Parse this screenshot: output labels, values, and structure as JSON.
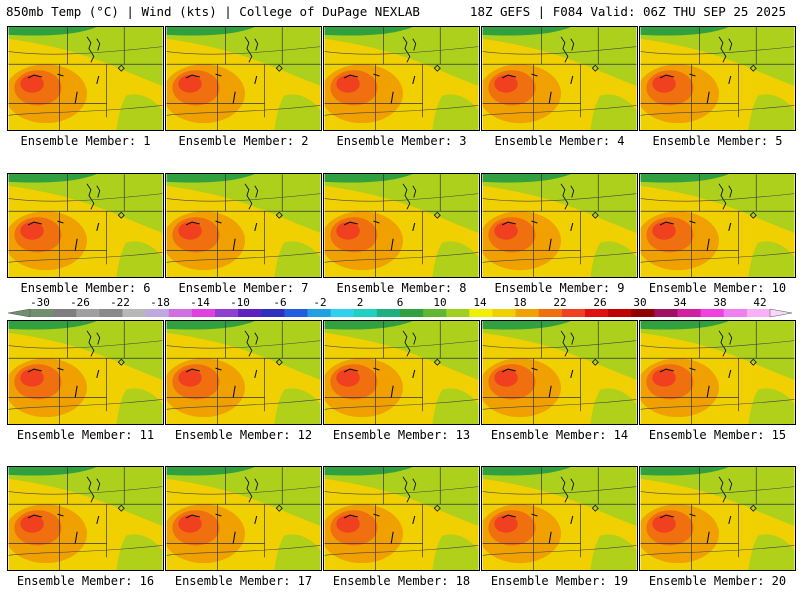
{
  "header": {
    "left": "850mb Temp (°C) | Wind (kts) | College of DuPage NEXLAB",
    "right": "18Z GEFS | F084 Valid: 06Z THU SEP 25 2025"
  },
  "members": [
    "Ensemble Member: 1",
    "Ensemble Member: 2",
    "Ensemble Member: 3",
    "Ensemble Member: 4",
    "Ensemble Member: 5",
    "Ensemble Member: 6",
    "Ensemble Member: 7",
    "Ensemble Member: 8",
    "Ensemble Member: 9",
    "Ensemble Member: 10",
    "Ensemble Member: 11",
    "Ensemble Member: 12",
    "Ensemble Member: 13",
    "Ensemble Member: 14",
    "Ensemble Member: 15",
    "Ensemble Member: 16",
    "Ensemble Member: 17",
    "Ensemble Member: 18",
    "Ensemble Member: 19",
    "Ensemble Member: 20"
  ],
  "colorbar": {
    "labels": [
      "-30",
      "-26",
      "-22",
      "-18",
      "-14",
      "-10",
      "-6",
      "-2",
      "2",
      "6",
      "10",
      "14",
      "18",
      "22",
      "26",
      "30",
      "34",
      "38",
      "42"
    ],
    "colors": [
      "#6f8f6f",
      "#7f7f7f",
      "#a0a0a0",
      "#8a8a8a",
      "#b8b8b8",
      "#c0a8e0",
      "#d070e0",
      "#e040e0",
      "#9040d0",
      "#6020c0",
      "#3030c0",
      "#2060e0",
      "#20a0e0",
      "#30d0f0",
      "#20d0c0",
      "#20b080",
      "#30a040",
      "#60b830",
      "#a0d020",
      "#f0f000",
      "#f0d000",
      "#f0a000",
      "#f07010",
      "#f04020",
      "#e01010",
      "#c00000",
      "#900000",
      "#a01060",
      "#d020a0",
      "#f040e0",
      "#f080f0",
      "#f8b0f8"
    ]
  }
}
